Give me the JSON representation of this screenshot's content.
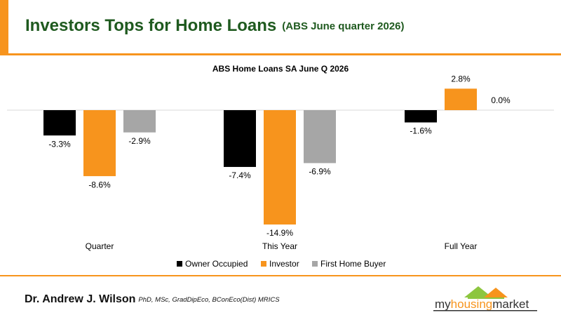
{
  "header": {
    "title": "Investors Tops for Home Loans",
    "subtitle": "(ABS June quarter  2026)"
  },
  "chart_data": {
    "type": "bar",
    "title": "ABS Home Loans SA June Q 2026",
    "categories": [
      "Quarter",
      "This Year",
      "Full Year"
    ],
    "series": [
      {
        "name": "Owner Occupied",
        "color": "#000000",
        "values": [
          -3.3,
          -7.4,
          -1.6
        ],
        "value_labels": [
          "-3.3%",
          "-7.4%",
          "-1.6%"
        ]
      },
      {
        "name": "Investor",
        "color": "#f7941d",
        "values": [
          -8.6,
          -14.9,
          2.8
        ],
        "value_labels": [
          "-8.6%",
          "-14.9%",
          "2.8%"
        ]
      },
      {
        "name": "First Home Buyer",
        "color": "#a6a6a6",
        "values": [
          -2.9,
          -6.9,
          0.0
        ],
        "value_labels": [
          "-2.9%",
          "-6.9%",
          "0.0%"
        ]
      }
    ],
    "legend": "bottom"
  },
  "footer": {
    "author": "Dr. Andrew J. Wilson",
    "credentials": "PhD, MSc, GradDipEco, BConEco(Dist) MRICS",
    "logo": [
      "my",
      "housing",
      "market"
    ]
  }
}
